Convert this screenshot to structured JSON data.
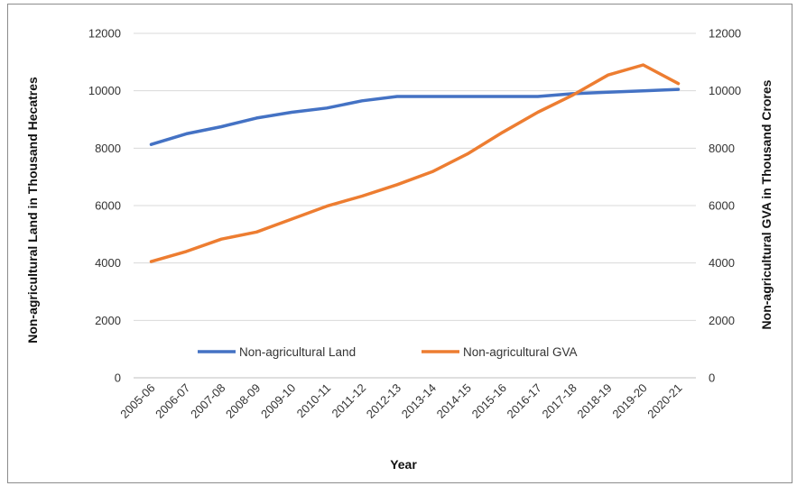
{
  "chart_data": {
    "type": "line",
    "title": "",
    "xlabel": "Year",
    "ylabel_left": "Non-agricultural Land in Thousand Hecatres",
    "ylabel_right": "Non-agricultural GVA in Thousand Crores",
    "categories": [
      "2005-06",
      "2006-07",
      "2007-08",
      "2008-09",
      "2009-10",
      "2010-11",
      "2011-12",
      "2012-13",
      "2013-14",
      "2014-15",
      "2015-16",
      "2016-17",
      "2017-18",
      "2018-19",
      "2019-20",
      "2020-21"
    ],
    "ylim_left": [
      0,
      12000
    ],
    "ylim_right": [
      0,
      12000
    ],
    "yticks_left": [
      "0",
      "2000",
      "4000",
      "6000",
      "8000",
      "10000",
      "12000"
    ],
    "yticks_right": [
      "0",
      "2000",
      "4000",
      "6000",
      "8000",
      "10000",
      "12000"
    ],
    "grid": true,
    "legend_position": "bottom-inside",
    "series": [
      {
        "name": "Non-agricultural Land",
        "axis": "left",
        "color": "#4472c4",
        "values": [
          8130,
          8500,
          8750,
          9050,
          9250,
          9400,
          9650,
          9800,
          9800,
          9800,
          9800,
          9800,
          9900,
          9950,
          10000,
          10050
        ]
      },
      {
        "name": "Non-agricultural GVA",
        "axis": "right",
        "color": "#ed7d31",
        "values": [
          4050,
          4400,
          4830,
          5080,
          5530,
          5980,
          6330,
          6730,
          7180,
          7800,
          8550,
          9250,
          9850,
          10550,
          10900,
          10250
        ]
      }
    ]
  }
}
